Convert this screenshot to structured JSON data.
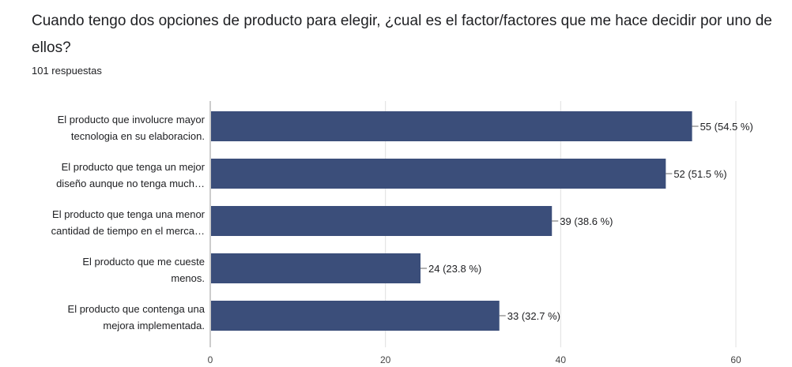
{
  "question": {
    "title": "Cuando tengo dos opciones de producto para elegir, ¿cual es el factor/factores que me hace decidir por uno de ellos?",
    "responses": "101 respuestas"
  },
  "colors": {
    "bar": "#3b4e7a",
    "axis": "#999999",
    "grid": "#e0e0e0"
  },
  "chart_data": {
    "type": "bar",
    "orientation": "horizontal",
    "categories": [
      [
        "El producto que involucre mayor",
        "tecnologia en su elaboracion."
      ],
      [
        "El producto que tenga un mejor",
        "diseño aunque no tenga much…"
      ],
      [
        "El producto que tenga una menor",
        "cantidad de tiempo en el merca…"
      ],
      [
        "El producto que me cueste",
        "menos."
      ],
      [
        "El producto que contenga una",
        "mejora implementada."
      ]
    ],
    "values": [
      55,
      52,
      39,
      24,
      33
    ],
    "data_labels": [
      "55 (54.5 %)",
      "52 (51.5 %)",
      "39 (38.6 %)",
      "24 (23.8 %)",
      "33 (32.7 %)"
    ],
    "xlim": [
      0,
      60
    ],
    "xticks": [
      0,
      20,
      40,
      60
    ],
    "grid": true
  }
}
